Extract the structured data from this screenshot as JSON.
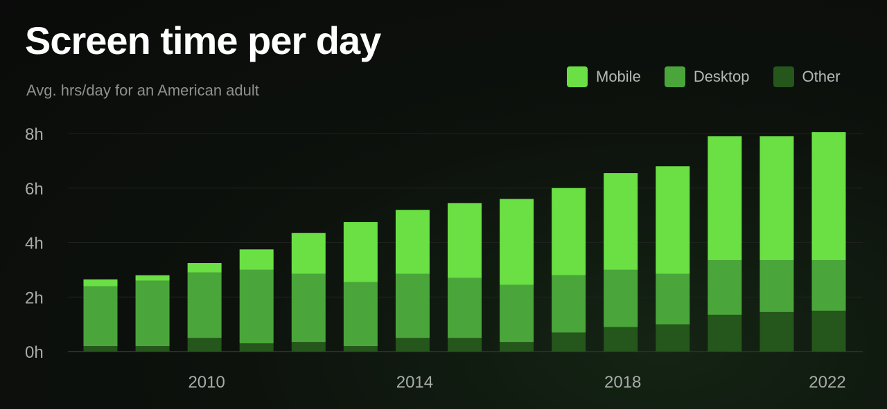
{
  "chart_data": {
    "type": "bar",
    "stacked": true,
    "title": "Screen time per day",
    "subtitle": "Avg. hrs/day for an American adult",
    "x": [
      2008,
      2009,
      2010,
      2011,
      2012,
      2013,
      2014,
      2015,
      2016,
      2017,
      2018,
      2019,
      2020,
      2021,
      2022
    ],
    "x_tick_labels": [
      "2010",
      "2014",
      "2018",
      "2022"
    ],
    "y_ticks": [
      "0h",
      "2h",
      "4h",
      "6h",
      "8h"
    ],
    "ylim": [
      0,
      8
    ],
    "grid": true,
    "legend_position": "top-right",
    "series": [
      {
        "name": "Other",
        "color": "#25561b",
        "values": [
          0.2,
          0.2,
          0.5,
          0.3,
          0.35,
          0.2,
          0.5,
          0.5,
          0.35,
          0.7,
          0.9,
          1.0,
          1.35,
          1.45,
          1.5
        ]
      },
      {
        "name": "Desktop",
        "color": "#4aa63a",
        "values": [
          2.2,
          2.4,
          2.4,
          2.7,
          2.5,
          2.35,
          2.35,
          2.2,
          2.1,
          2.1,
          2.1,
          1.85,
          2.0,
          1.9,
          1.85
        ]
      },
      {
        "name": "Mobile",
        "color": "#6ae044",
        "values": [
          0.25,
          0.2,
          0.35,
          0.75,
          1.5,
          2.2,
          2.35,
          2.75,
          3.15,
          3.2,
          3.55,
          3.95,
          4.55,
          4.55,
          4.7
        ]
      }
    ]
  },
  "legend": [
    {
      "label": "Mobile",
      "color": "#6ae044"
    },
    {
      "label": "Desktop",
      "color": "#4aa63a"
    },
    {
      "label": "Other",
      "color": "#25561b"
    }
  ]
}
